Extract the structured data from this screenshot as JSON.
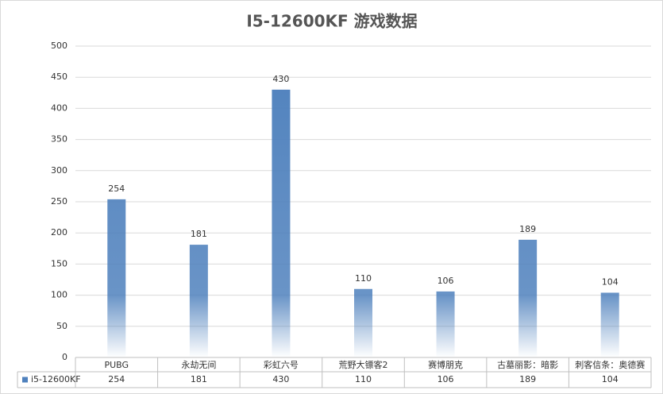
{
  "chart_data": {
    "type": "bar",
    "title": "I5-12600KF 游戏数据",
    "categories": [
      "PUBG",
      "永劫无间",
      "彩虹六号",
      "荒野大镖客2",
      "赛博朋克",
      "古墓丽影：暗影",
      "刺客信条：奥德赛"
    ],
    "series": [
      {
        "name": "i5-12600KF",
        "color": "#4f81bd",
        "values": [
          254,
          181,
          430,
          110,
          106,
          189,
          104
        ]
      }
    ],
    "ylim": [
      0,
      500
    ],
    "yticks": [
      0,
      50,
      100,
      150,
      200,
      250,
      300,
      350,
      400,
      450,
      500
    ],
    "grid": true,
    "data_table": true
  }
}
